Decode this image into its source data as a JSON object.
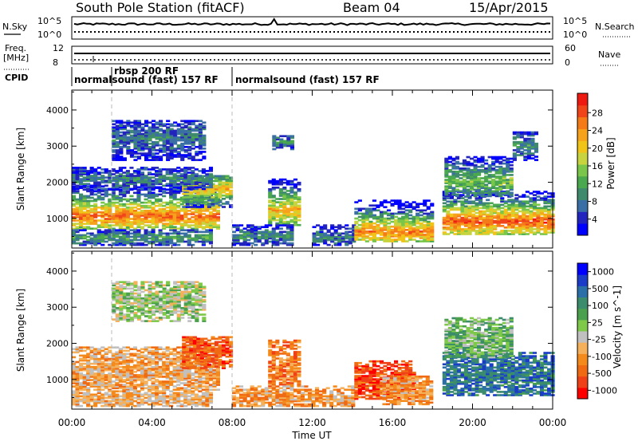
{
  "header": {
    "station": "South Pole Station (fitACF)",
    "beam": "Beam 04",
    "date": "15/Apr/2015"
  },
  "summary": {
    "nsky_label": "N.Sky",
    "nsearch_label": "N.Search",
    "freq_label_1": "Freq.",
    "freq_label_2": "[MHz]",
    "nave_label": "Nave",
    "cpid_label": "CPID",
    "nsky_ticks": [
      "10^5",
      "10^0"
    ],
    "nsearch_ticks": [
      "10^5",
      "10^0"
    ],
    "freq_ticks": [
      "12",
      "8"
    ],
    "nave_ticks": [
      "60",
      "0"
    ],
    "cpid_modes": [
      {
        "name": "normalsound (fast) 157 RF",
        "start_h": 0.0
      },
      {
        "name": "rbsp 200 RF",
        "start_h": 2.0
      },
      {
        "name": "normalsound (fast) 157 RF",
        "start_h": 8.0
      }
    ]
  },
  "chart_data": [
    {
      "type": "heatmap",
      "panel": "power",
      "xlabel": "Time UT",
      "ylabel": "Slant Range [km]",
      "xlim": [
        0,
        24
      ],
      "ylim": [
        180,
        4550
      ],
      "xticks": [
        "00:00",
        "04:00",
        "08:00",
        "12:00",
        "16:00",
        "20:00",
        "00:00"
      ],
      "yticks": [
        1000,
        2000,
        3000,
        4000
      ],
      "colorbar": {
        "label": "Power [dB]",
        "ticks": [
          "28",
          "24",
          "20",
          "16",
          "12",
          "8",
          "4"
        ],
        "colors": [
          "#0000ff",
          "#2323bd",
          "#3a6fa5",
          "#3f8a6d",
          "#4aa84e",
          "#79c64a",
          "#c8d43f",
          "#f0c418",
          "#f7a21c",
          "#f57b18",
          "#f0441a",
          "#ee1a12"
        ]
      },
      "bands": [
        {
          "t0": 0.0,
          "t1": 7.2,
          "r_lo": 700,
          "r_hi": 1900,
          "peak": 1050,
          "level": 0.85
        },
        {
          "t0": 0.0,
          "t1": 7.0,
          "r_lo": 250,
          "r_hi": 700,
          "peak": 450,
          "level": 0.35
        },
        {
          "t0": 5.5,
          "t1": 8.0,
          "r_lo": 1300,
          "r_hi": 2200,
          "peak": 1800,
          "level": 0.7
        },
        {
          "t0": 9.8,
          "t1": 11.3,
          "r_lo": 800,
          "r_hi": 2100,
          "peak": 1200,
          "level": 0.7
        },
        {
          "t0": 8.0,
          "t1": 11.0,
          "r_lo": 250,
          "r_hi": 800,
          "peak": 500,
          "level": 0.3
        },
        {
          "t0": 12.0,
          "t1": 14.0,
          "r_lo": 250,
          "r_hi": 800,
          "peak": 450,
          "level": 0.25
        },
        {
          "t0": 14.1,
          "t1": 18.0,
          "r_lo": 350,
          "r_hi": 1500,
          "peak": 600,
          "level": 0.8
        },
        {
          "t0": 18.5,
          "t1": 24.0,
          "r_lo": 550,
          "r_hi": 1750,
          "peak": 900,
          "level": 0.9
        },
        {
          "t0": 18.6,
          "t1": 22.0,
          "r_lo": 1600,
          "r_hi": 2700,
          "peak": 2000,
          "level": 0.45
        },
        {
          "t0": 0.0,
          "t1": 7.0,
          "r_lo": 1800,
          "r_hi": 2400,
          "peak": 2050,
          "level": 0.25
        },
        {
          "t0": 2.0,
          "t1": 6.5,
          "r_lo": 2600,
          "r_hi": 3700,
          "peak": 3200,
          "level": 0.25
        },
        {
          "t0": 10.0,
          "t1": 11.0,
          "r_lo": 2900,
          "r_hi": 3300,
          "peak": 3100,
          "level": 0.3
        },
        {
          "t0": 22.0,
          "t1": 23.2,
          "r_lo": 2600,
          "r_hi": 3400,
          "peak": 3000,
          "level": 0.3
        }
      ]
    },
    {
      "type": "heatmap",
      "panel": "velocity",
      "xlabel": "Time UT",
      "ylabel": "Slant Range [km]",
      "xlim": [
        0,
        24
      ],
      "ylim": [
        180,
        4550
      ],
      "xticks": [
        "00:00",
        "04:00",
        "08:00",
        "12:00",
        "16:00",
        "20:00",
        "00:00"
      ],
      "yticks": [
        1000,
        2000,
        3000,
        4000
      ],
      "colorbar": {
        "label": "Velocity [m s^-1]",
        "ticks": [
          "1000",
          "500",
          "100",
          "25",
          "-25",
          "-100",
          "-500",
          "-1000"
        ],
        "colors": [
          "#ff0000",
          "#f04018",
          "#f06a14",
          "#f58a1c",
          "#f4b05a",
          "#c0c0c0",
          "#7ec84a",
          "#4aa04c",
          "#3a8c6c",
          "#2a6fa8",
          "#1a3cc8",
          "#0000ff"
        ]
      },
      "bands": [
        {
          "t0": 0.0,
          "t1": 7.2,
          "r_lo": 700,
          "r_hi": 1900,
          "peak": 1100,
          "level": 0.33
        },
        {
          "t0": 5.5,
          "t1": 8.0,
          "r_lo": 1300,
          "r_hi": 2200,
          "peak": 1800,
          "level": 0.15
        },
        {
          "t0": 0.0,
          "t1": 7.0,
          "r_lo": 250,
          "r_hi": 700,
          "peak": 450,
          "level": 0.35
        },
        {
          "t0": 9.8,
          "t1": 11.3,
          "r_lo": 800,
          "r_hi": 2100,
          "peak": 1200,
          "level": 0.22
        },
        {
          "t0": 8.0,
          "t1": 14.0,
          "r_lo": 250,
          "r_hi": 800,
          "peak": 450,
          "level": 0.3
        },
        {
          "t0": 14.1,
          "t1": 17.0,
          "r_lo": 450,
          "r_hi": 1500,
          "peak": 800,
          "level": 0.12
        },
        {
          "t0": 15.5,
          "t1": 18.0,
          "r_lo": 300,
          "r_hi": 1100,
          "peak": 600,
          "level": 0.3
        },
        {
          "t0": 18.5,
          "t1": 24.0,
          "r_lo": 550,
          "r_hi": 1750,
          "peak": 1100,
          "level": 0.8
        },
        {
          "t0": 18.6,
          "t1": 22.0,
          "r_lo": 1600,
          "r_hi": 2700,
          "peak": 2000,
          "level": 0.6
        },
        {
          "t0": 2.0,
          "t1": 6.5,
          "r_lo": 2600,
          "r_hi": 3700,
          "peak": 3200,
          "level": 0.5
        }
      ]
    }
  ]
}
